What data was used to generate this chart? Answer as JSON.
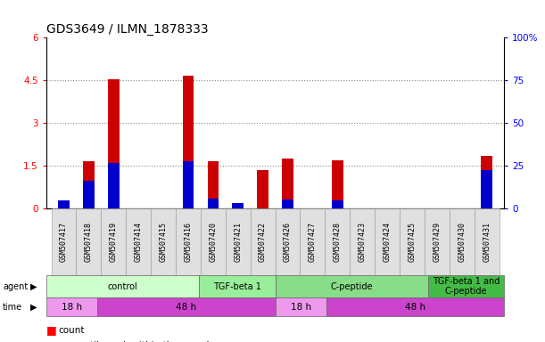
{
  "title": "GDS3649 / ILMN_1878333",
  "samples": [
    "GSM507417",
    "GSM507418",
    "GSM507419",
    "GSM507414",
    "GSM507415",
    "GSM507416",
    "GSM507420",
    "GSM507421",
    "GSM507422",
    "GSM507426",
    "GSM507427",
    "GSM507428",
    "GSM507423",
    "GSM507424",
    "GSM507425",
    "GSM507429",
    "GSM507430",
    "GSM507431"
  ],
  "count_values": [
    0.15,
    1.65,
    4.55,
    0.0,
    0.0,
    4.65,
    1.65,
    0.0,
    1.35,
    1.75,
    0.0,
    1.7,
    0.0,
    0.0,
    0.0,
    0.0,
    0.0,
    1.85
  ],
  "percentile_values": [
    5.0,
    16.5,
    26.5,
    0.0,
    0.0,
    27.5,
    5.8,
    3.0,
    0.0,
    5.3,
    0.0,
    5.0,
    0.0,
    0.0,
    0.0,
    0.0,
    0.0,
    22.5
  ],
  "bar_color": "#cc0000",
  "percentile_color": "#0000cc",
  "ylim_left": [
    0,
    6
  ],
  "ylim_right": [
    0,
    100
  ],
  "yticks_left": [
    0,
    1.5,
    3.0,
    4.5,
    6.0
  ],
  "yticks_right": [
    0,
    25,
    50,
    75,
    100
  ],
  "ytick_labels_left": [
    "0",
    "1.5",
    "3",
    "4.5",
    "6"
  ],
  "ytick_labels_right": [
    "0",
    "25",
    "50",
    "75",
    "100%"
  ],
  "agent_groups": [
    {
      "label": "control",
      "start": 0,
      "end": 6,
      "color": "#ccffcc"
    },
    {
      "label": "TGF-beta 1",
      "start": 6,
      "end": 9,
      "color": "#99ee99"
    },
    {
      "label": "C-peptide",
      "start": 9,
      "end": 15,
      "color": "#88dd88"
    },
    {
      "label": "TGF-beta 1 and\nC-peptide",
      "start": 15,
      "end": 18,
      "color": "#44bb44"
    }
  ],
  "time_groups": [
    {
      "label": "18 h",
      "start": 0,
      "end": 2,
      "color": "#ee99ee"
    },
    {
      "label": "48 h",
      "start": 2,
      "end": 9,
      "color": "#cc44cc"
    },
    {
      "label": "18 h",
      "start": 9,
      "end": 11,
      "color": "#ee99ee"
    },
    {
      "label": "48 h",
      "start": 11,
      "end": 18,
      "color": "#cc44cc"
    }
  ],
  "bar_width": 0.45,
  "grid_dotted_color": "#888888",
  "bg_color": "#ffffff",
  "title_fontsize": 10,
  "tick_fontsize": 7.5,
  "sample_fontsize": 6,
  "group_fontsize": 7,
  "time_fontsize": 7.5,
  "legend_fontsize": 7.5
}
